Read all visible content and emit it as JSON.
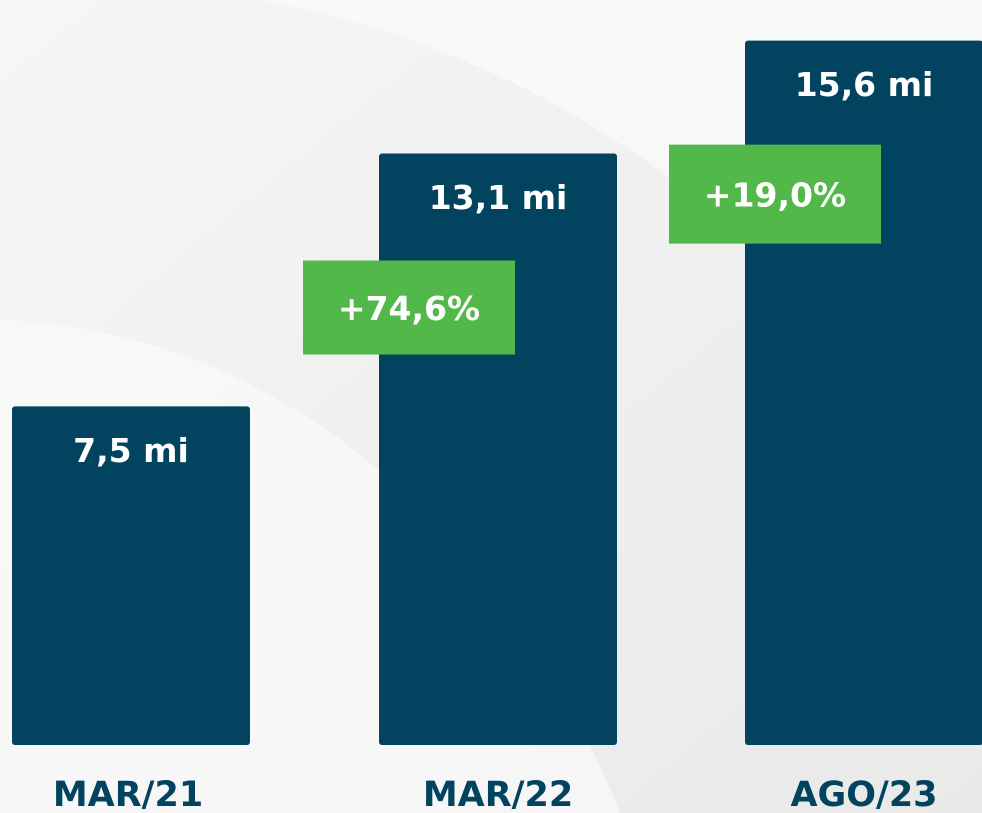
{
  "chart_data": {
    "type": "bar",
    "categories": [
      "MAR/21",
      "MAR/22",
      "AGO/23"
    ],
    "values": [
      7.5,
      13.1,
      15.6
    ],
    "value_labels": [
      "7,5 mi",
      "13,1 mi",
      "15,6 mi"
    ],
    "annotations": [
      "+74,6%",
      "+19,0%"
    ],
    "color": "#02445f",
    "annotation_color": "#52b84a",
    "ylim": [
      0,
      16.5
    ]
  }
}
